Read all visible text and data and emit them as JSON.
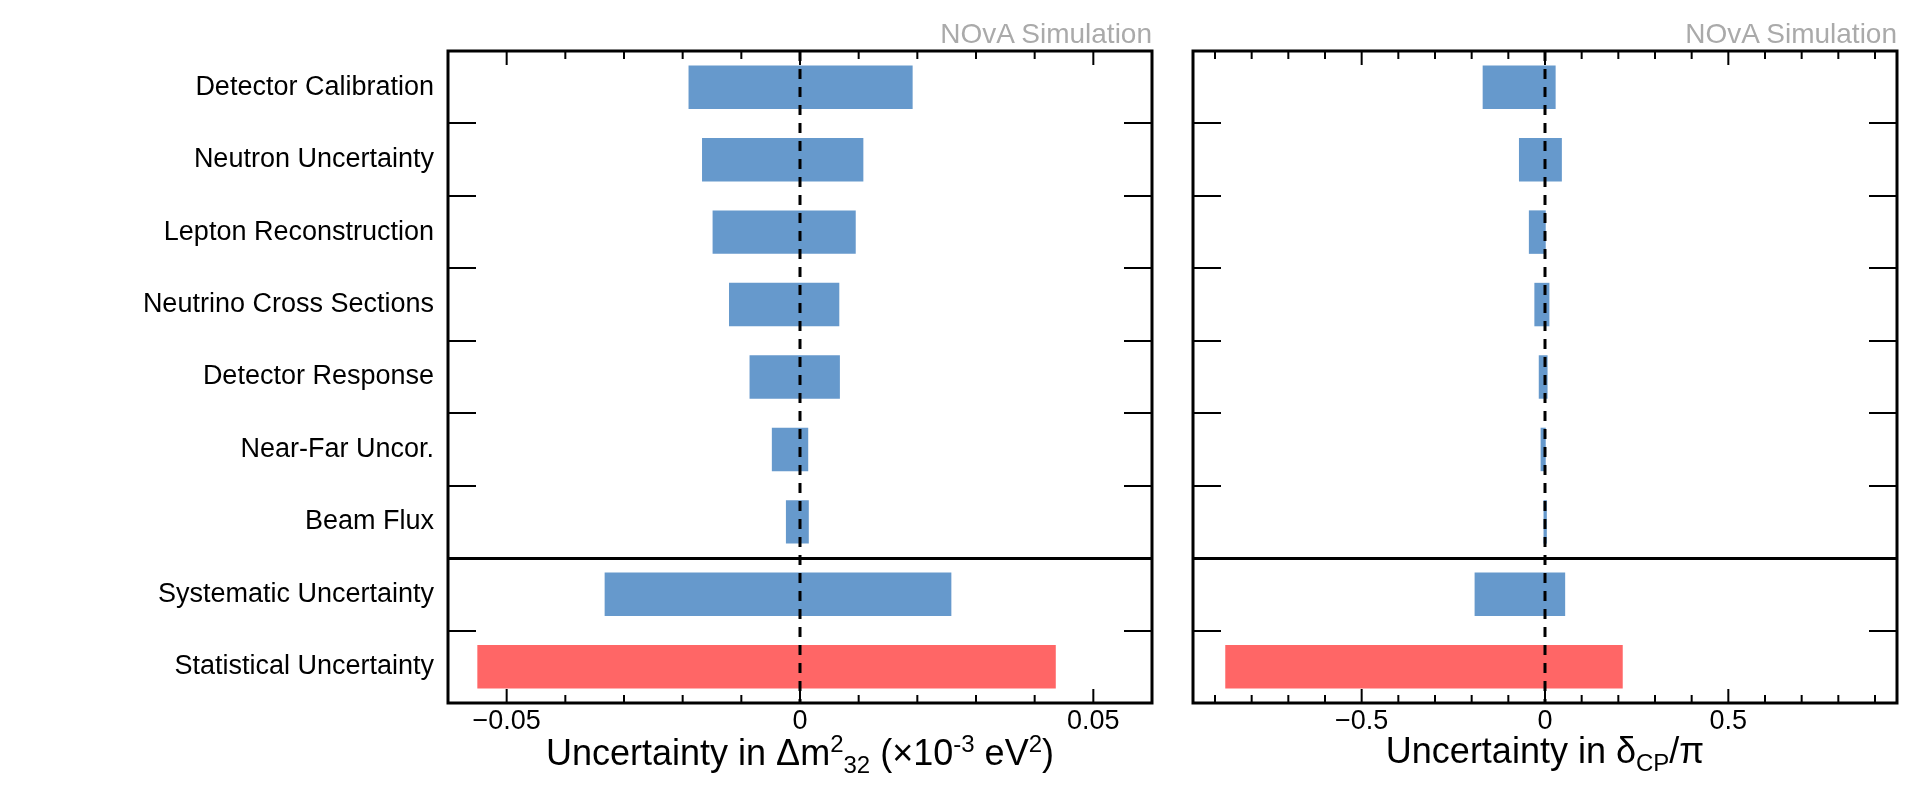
{
  "chart_data": [
    {
      "type": "bar",
      "orientation": "horizontal",
      "subtitle": "NOvA Simulation",
      "xlabel": "Uncertainty in Δm$^{2}$$_{32}$ (×10$^{-3}$ eV$^{2}$)",
      "categories": [
        "Detector Calibration",
        "Neutron Uncertainty",
        "Lepton Reconstruction",
        "Neutrino Cross Sections",
        "Detector Response",
        "Near-Far Uncor.",
        "Beam Flux",
        "Systematic Uncertainty",
        "Statistical Uncertainty"
      ],
      "base": [
        -0.019,
        -0.0167,
        -0.0149,
        -0.0121,
        -0.0086,
        -0.0048,
        -0.0024,
        -0.0333,
        -0.055
      ],
      "values": [
        0.0382,
        0.0275,
        0.0244,
        0.0188,
        0.0154,
        0.0062,
        0.0039,
        0.0591,
        0.0986
      ],
      "colors": [
        "#6699cc",
        "#6699cc",
        "#6699cc",
        "#6699cc",
        "#6699cc",
        "#6699cc",
        "#6699cc",
        "#6699cc",
        "#ff6666"
      ],
      "xlim": [
        -0.06,
        0.06
      ],
      "xticks": [
        {
          "value": -0.05,
          "label": "−0.05"
        },
        {
          "value": -0.04,
          "label": null
        },
        {
          "value": -0.03,
          "label": null
        },
        {
          "value": -0.02,
          "label": null
        },
        {
          "value": -0.01,
          "label": null
        },
        0,
        {
          "value": 0.01,
          "label": null
        },
        {
          "value": 0.02,
          "label": null
        },
        {
          "value": 0.03,
          "label": null
        },
        {
          "value": 0.04,
          "label": null
        },
        0.05
      ],
      "ref_lines": [
        {
          "axis": "x",
          "value": 0,
          "line_style": "dashed",
          "color": "#000000"
        }
      ]
    },
    {
      "type": "bar",
      "orientation": "horizontal",
      "subtitle": "NOvA Simulation",
      "xlabel": "Uncertainty in δ$_{CP}$/π",
      "tick_labels": "x",
      "categories": [
        null,
        null,
        null,
        null,
        null,
        null,
        null,
        null,
        null
      ],
      "base": [
        -0.17,
        -0.071,
        -0.044,
        -0.029,
        -0.017,
        -0.012,
        -0.004,
        -0.192,
        -0.872
      ],
      "values": [
        0.199,
        0.117,
        0.046,
        0.041,
        0.024,
        0.014,
        0.009,
        0.247,
        1.084
      ],
      "colors": [
        "#6699cc",
        "#6699cc",
        "#6699cc",
        "#6699cc",
        "#6699cc",
        "#6699cc",
        "#6699cc",
        "#6699cc",
        "#ff6666"
      ],
      "xlim": [
        -0.96,
        0.96
      ],
      "xticks": [
        {
          "value": -0.9,
          "label": null
        },
        {
          "value": -0.8,
          "label": null
        },
        {
          "value": -0.7,
          "label": null
        },
        {
          "value": -0.6,
          "label": null
        },
        {
          "value": -0.5,
          "label": "−0.5"
        },
        {
          "value": -0.4,
          "label": null
        },
        {
          "value": -0.3,
          "label": null
        },
        {
          "value": -0.2,
          "label": null
        },
        {
          "value": -0.1,
          "label": null
        },
        0,
        {
          "value": 0.1,
          "label": null
        },
        {
          "value": 0.2,
          "label": null
        },
        {
          "value": 0.3,
          "label": null
        },
        {
          "value": 0.4,
          "label": null
        },
        0.5,
        {
          "value": 0.6,
          "label": null
        },
        {
          "value": 0.7,
          "label": null
        },
        {
          "value": 0.8,
          "label": null
        },
        {
          "value": 0.9,
          "label": null
        }
      ],
      "ref_lines": [
        {
          "axis": "x",
          "value": 0,
          "line_style": "dashed",
          "color": "#000000"
        }
      ]
    }
  ]
}
